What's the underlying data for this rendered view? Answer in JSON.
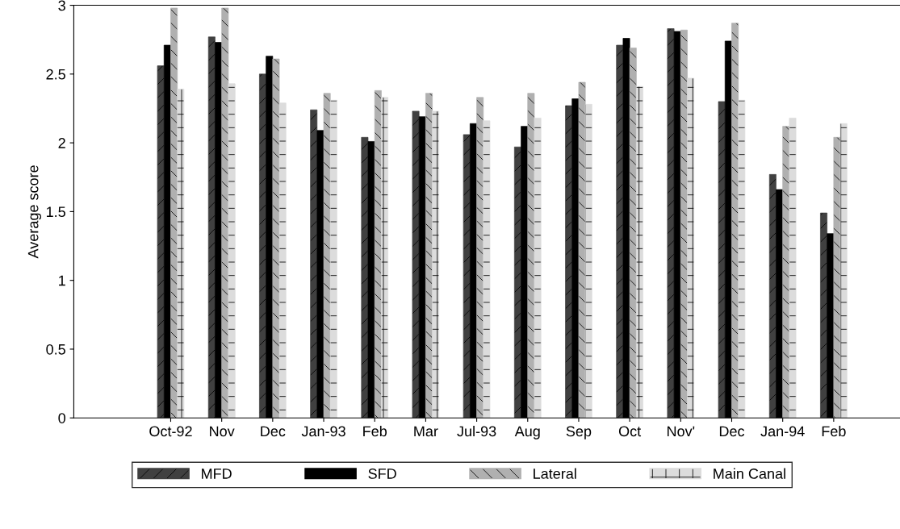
{
  "chart_data": {
    "type": "bar",
    "ylabel": "Average score",
    "categories": [
      "Oct-92",
      "Nov",
      "Dec",
      "Jan-93",
      "Feb",
      "Mar",
      "Jul-93",
      "Aug",
      "Sep",
      "Oct",
      "Nov'",
      "Dec",
      "Jan-94",
      "Feb"
    ],
    "series": [
      {
        "name": "MFD",
        "color": "#404040",
        "values": [
          2.56,
          2.77,
          2.5,
          2.24,
          2.04,
          2.23,
          2.06,
          1.97,
          2.27,
          2.71,
          2.83,
          2.3,
          1.77,
          1.49
        ]
      },
      {
        "name": "SFD",
        "color": "#000000",
        "values": [
          2.71,
          2.73,
          2.63,
          2.09,
          2.01,
          2.19,
          2.14,
          2.12,
          2.32,
          2.76,
          2.81,
          2.74,
          1.66,
          1.34
        ]
      },
      {
        "name": "Lateral",
        "color": "#b0b0b0",
        "values": [
          2.98,
          2.98,
          2.61,
          2.36,
          2.38,
          2.36,
          2.33,
          2.36,
          2.44,
          2.69,
          2.82,
          2.87,
          2.12,
          2.04
        ]
      },
      {
        "name": "Main Canal",
        "color": "#dcdcdc",
        "values": [
          2.39,
          2.43,
          2.29,
          2.31,
          2.33,
          2.23,
          2.16,
          2.18,
          2.28,
          2.41,
          2.47,
          2.31,
          2.18,
          2.14
        ]
      }
    ],
    "ylim": [
      0,
      3
    ],
    "yticks": [
      0,
      0.5,
      1,
      1.5,
      2,
      2.5,
      3
    ],
    "grid": false,
    "legend": "bottom"
  }
}
